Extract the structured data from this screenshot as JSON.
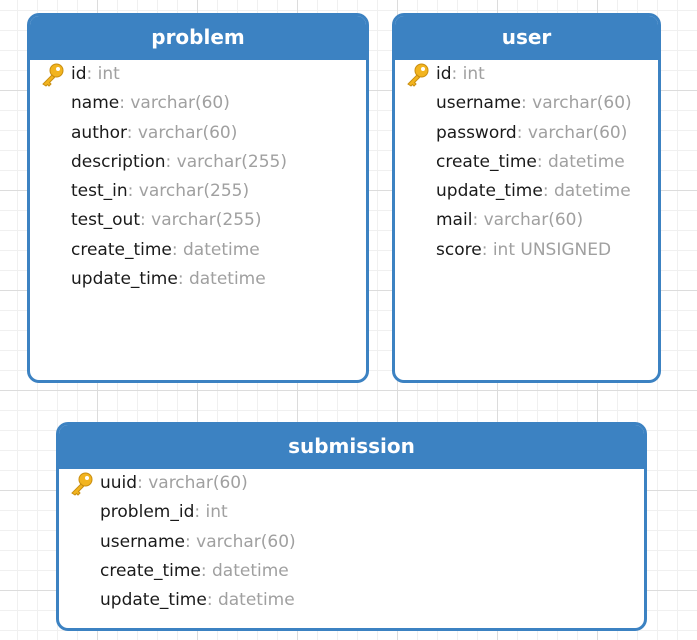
{
  "entities": [
    {
      "name": "problem",
      "fields": [
        {
          "name": "id",
          "type": ": int",
          "pk": true
        },
        {
          "name": "name",
          "type": ": varchar(60)",
          "pk": false
        },
        {
          "name": "author",
          "type": ": varchar(60)",
          "pk": false
        },
        {
          "name": "description",
          "type": ": varchar(255)",
          "pk": false
        },
        {
          "name": "test_in",
          "type": ": varchar(255)",
          "pk": false
        },
        {
          "name": "test_out",
          "type": ": varchar(255)",
          "pk": false
        },
        {
          "name": "create_time",
          "type": ": datetime",
          "pk": false
        },
        {
          "name": "update_time",
          "type": ": datetime",
          "pk": false
        }
      ]
    },
    {
      "name": "user",
      "fields": [
        {
          "name": "id",
          "type": ": int",
          "pk": true
        },
        {
          "name": "username",
          "type": ": varchar(60)",
          "pk": false
        },
        {
          "name": "password",
          "type": ": varchar(60)",
          "pk": false
        },
        {
          "name": "create_time",
          "type": ": datetime",
          "pk": false
        },
        {
          "name": "update_time",
          "type": ": datetime",
          "pk": false
        },
        {
          "name": "mail",
          "type": ": varchar(60)",
          "pk": false
        },
        {
          "name": "score",
          "type": ": int UNSIGNED",
          "pk": false
        }
      ]
    },
    {
      "name": "submission",
      "fields": [
        {
          "name": "uuid",
          "type": ": varchar(60)",
          "pk": true
        },
        {
          "name": "problem_id",
          "type": ": int",
          "pk": false
        },
        {
          "name": "username",
          "type": ": varchar(60)",
          "pk": false
        },
        {
          "name": "create_time",
          "type": ": datetime",
          "pk": false
        },
        {
          "name": "update_time",
          "type": ": datetime",
          "pk": false
        }
      ]
    }
  ],
  "icons": {
    "primary_key": "key-icon",
    "key_color": "#f2b41f"
  },
  "colors": {
    "header": "#3c82c2",
    "field_name": "#1a1a1a",
    "field_type": "#a0a0a0"
  }
}
